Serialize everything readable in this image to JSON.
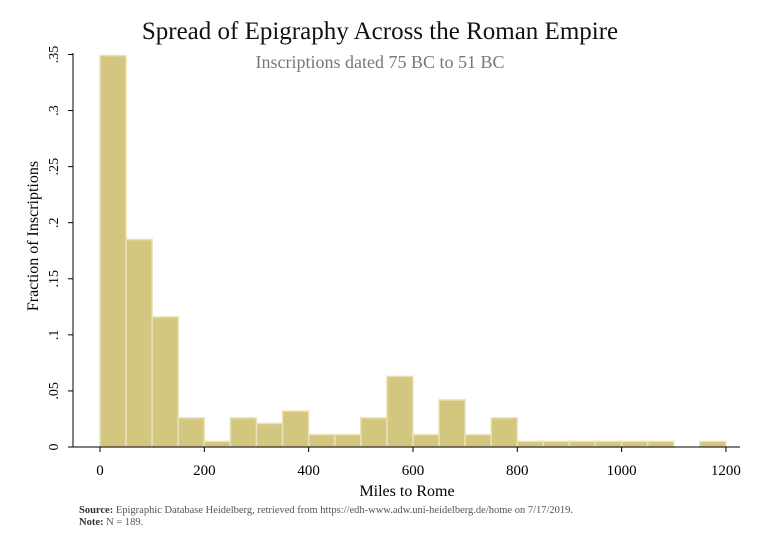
{
  "chart_data": {
    "type": "bar",
    "title": "Spread of Epigraphy Across the Roman Empire",
    "subtitle": "Inscriptions dated 75 BC to 51 BC",
    "xlabel": "Miles to Rome",
    "ylabel": "Fraction of Inscriptions",
    "xlim": [
      -50,
      1200
    ],
    "ylim": [
      0,
      0.35
    ],
    "xticks": [
      0,
      200,
      400,
      600,
      800,
      1000,
      1200
    ],
    "xtick_labels": [
      "0",
      "200",
      "400",
      "600",
      "800",
      "1000",
      "1200"
    ],
    "yticks": [
      0,
      0.05,
      0.1,
      0.15,
      0.2,
      0.25,
      0.3,
      0.35
    ],
    "ytick_labels": [
      "0",
      ".05",
      ".1",
      ".15",
      ".2",
      ".25",
      ".3",
      ".35"
    ],
    "bin_width": 50,
    "bins": [
      {
        "x0": 0,
        "value": 0.349
      },
      {
        "x0": 50,
        "value": 0.185
      },
      {
        "x0": 100,
        "value": 0.116
      },
      {
        "x0": 150,
        "value": 0.026
      },
      {
        "x0": 200,
        "value": 0.005
      },
      {
        "x0": 250,
        "value": 0.026
      },
      {
        "x0": 300,
        "value": 0.021
      },
      {
        "x0": 350,
        "value": 0.032
      },
      {
        "x0": 400,
        "value": 0.011
      },
      {
        "x0": 450,
        "value": 0.011
      },
      {
        "x0": 500,
        "value": 0.026
      },
      {
        "x0": 550,
        "value": 0.063
      },
      {
        "x0": 600,
        "value": 0.011
      },
      {
        "x0": 650,
        "value": 0.042
      },
      {
        "x0": 700,
        "value": 0.011
      },
      {
        "x0": 750,
        "value": 0.026
      },
      {
        "x0": 800,
        "value": 0.005
      },
      {
        "x0": 850,
        "value": 0.005
      },
      {
        "x0": 900,
        "value": 0.005
      },
      {
        "x0": 950,
        "value": 0.005
      },
      {
        "x0": 1000,
        "value": 0.005
      },
      {
        "x0": 1050,
        "value": 0.005
      },
      {
        "x0": 1100,
        "value": 0
      },
      {
        "x0": 1150,
        "value": 0.005
      }
    ],
    "bar_color": "#d3c77f",
    "bar_edge_color": "#e9e2b6",
    "grid": false,
    "legend": "none"
  },
  "note": {
    "source_label": "Source:",
    "source_text": "Epigraphic Database Heidelberg, retrieved from https://edh-www.adw.uni-heidelberg.de/home on 7/17/2019.",
    "note_label": "Note:",
    "note_text": "N = 189."
  }
}
